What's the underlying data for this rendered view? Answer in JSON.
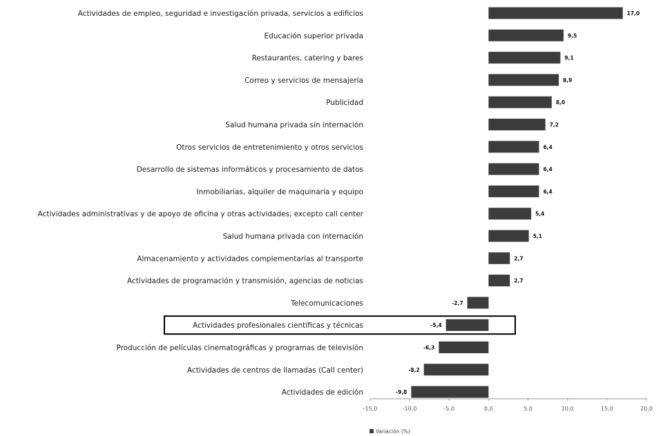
{
  "chart_data": {
    "type": "bar",
    "orientation": "horizontal",
    "categories": [
      "Actividades de empleo, seguridad e investigación privada, servicios a edificios",
      "Educación superior privada",
      "Restaurantes, catering y bares",
      "Correo y servicios de mensajería",
      "Publicidad",
      "Salud humana privada sin internación",
      "Otros servicios de entretenimiento y otros servicios",
      "Desarrollo de sistemas informáticos y procesamiento de datos",
      "Inmobiliarias, alquiler de maquinaria y equipo",
      "Actividades administrativas y de apoyo de oficina y otras actividades, excepto call center",
      "Salud humana privada con internación",
      "Almacenamiento y actividades complementarias al transporte",
      "Actividades de programación y transmisión, agencias de noticias",
      "Telecomunicaciones",
      "Actividades profesionales científicas y técnicas",
      "Producción de películas cinematográficas y programas de televisión",
      "Actividades de centros de llamadas (Call center)",
      "Actividades de edición"
    ],
    "series": [
      {
        "name": "Variación (%)",
        "values": [
          17.0,
          9.5,
          9.1,
          8.9,
          8.0,
          7.2,
          6.4,
          6.4,
          6.4,
          5.4,
          5.1,
          2.7,
          2.7,
          -2.7,
          -5.4,
          -6.3,
          -8.2,
          -9.8
        ],
        "value_labels": [
          "17,0",
          "9,5",
          "9,1",
          "8,9",
          "8,0",
          "7,2",
          "6,4",
          "6,4",
          "6,4",
          "5,4",
          "5,1",
          "2,7",
          "2,7",
          "-2,7",
          "-5,4",
          "-6,3",
          "-8,2",
          "-9,8"
        ]
      }
    ],
    "highlighted_category": "Actividades profesionales científicas y técnicas",
    "xlim": [
      -15,
      20
    ],
    "xticks": [
      -15,
      -10,
      -5,
      0,
      5,
      10,
      15,
      20
    ],
    "xtick_labels": [
      "-15,0",
      "-10,0",
      "-5,0",
      "0,0",
      "5,0",
      "10,0",
      "15,0",
      "20,0"
    ],
    "legend": {
      "label": "Variación (%)",
      "position": "bottom-center"
    },
    "colors": {
      "bar": "#3c3c3c",
      "highlight_border": "#000000",
      "axis": "#9a9a9a"
    },
    "grid": false
  }
}
